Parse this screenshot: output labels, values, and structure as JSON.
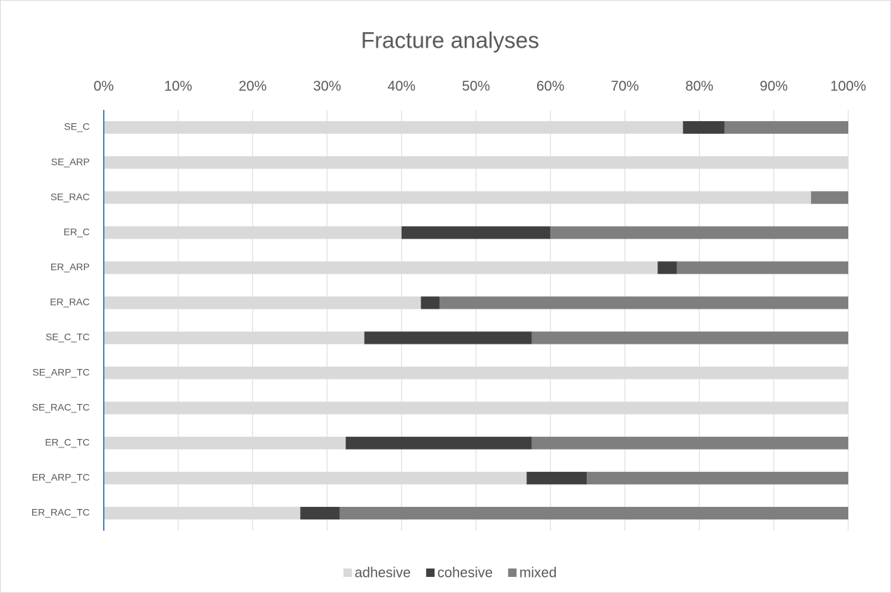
{
  "chart_data": {
    "type": "stacked-bar-horizontal",
    "title": "Fracture analyses",
    "categories": [
      "SE_C",
      "SE_ARP",
      "SE_RAC",
      "ER_C",
      "ER_ARP",
      "ER_RAC",
      "SE_C_TC",
      "SE_ARP_TC",
      "SE_RAC_TC",
      "ER_C_TC",
      "ER_ARP_TC",
      "ER_RAC_TC"
    ],
    "series": [
      {
        "name": "adhesive",
        "color": "#d9d9d9",
        "values": [
          77.8,
          100,
          95,
          40,
          74.4,
          42.6,
          35,
          100,
          100,
          32.5,
          56.8,
          26.4
        ]
      },
      {
        "name": "cohesive",
        "color": "#404040",
        "values": [
          5.6,
          0,
          0,
          20,
          2.6,
          2.5,
          22.5,
          0,
          0,
          25,
          8.1,
          5.3
        ]
      },
      {
        "name": "mixed",
        "color": "#7f7f7f",
        "values": [
          16.6,
          0,
          5,
          40,
          23,
          54.9,
          42.5,
          0,
          0,
          42.5,
          35.1,
          68.3
        ]
      }
    ],
    "xlim": [
      0,
      100
    ],
    "xticks": [
      {
        "value": 0,
        "label": "0%"
      },
      {
        "value": 10,
        "label": "10%"
      },
      {
        "value": 20,
        "label": "20%"
      },
      {
        "value": 30,
        "label": "30%"
      },
      {
        "value": 40,
        "label": "40%"
      },
      {
        "value": 50,
        "label": "50%"
      },
      {
        "value": 60,
        "label": "60%"
      },
      {
        "value": 70,
        "label": "70%"
      },
      {
        "value": 80,
        "label": "80%"
      },
      {
        "value": 90,
        "label": "90%"
      },
      {
        "value": 100,
        "label": "100%"
      }
    ],
    "grid": true,
    "legend": "bottom"
  }
}
